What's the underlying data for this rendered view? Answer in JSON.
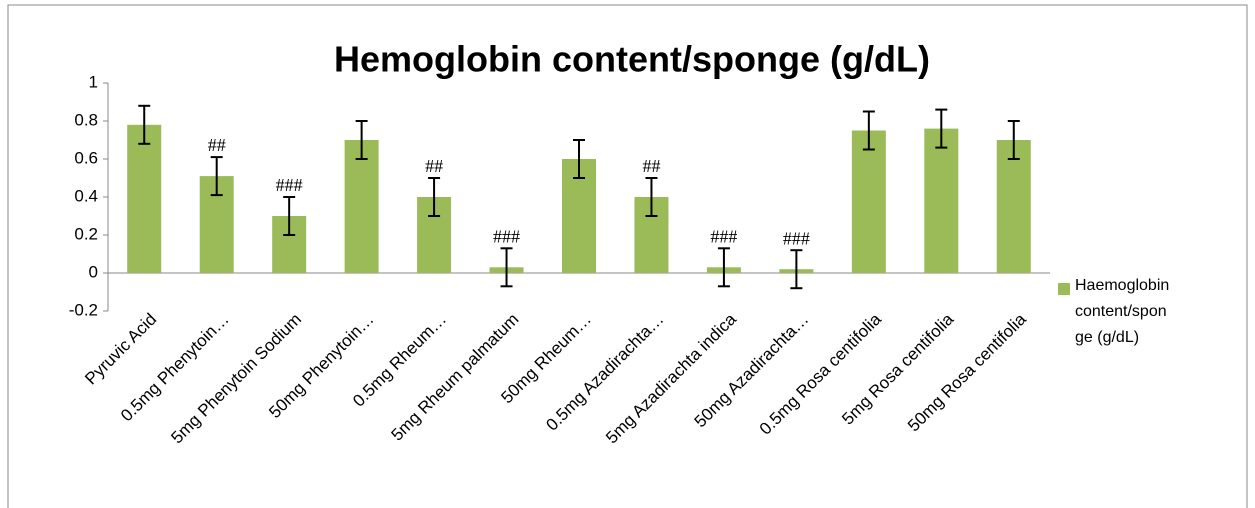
{
  "chart_data": {
    "type": "bar",
    "title": "Hemoglobin content/sponge (g/dL)",
    "categories": [
      "Pyruvic Acid",
      "0.5mg Phenytoin…",
      "5mg Phenytoin Sodium",
      "50mg Phenytoin…",
      "0.5mg Rheum…",
      "5mg Rheum palmatum",
      "50mg Rheum…",
      "0.5mg Azadirachta…",
      "5mg Azadirachta indica",
      "50mg Azadirachta…",
      "0.5mg Rosa centifolia",
      "5mg Rosa centifolia",
      "50mg Rosa centifolia"
    ],
    "series": [
      {
        "name": "Haemoglobin content/sponge (g/dL)",
        "color": "#9bbb59",
        "values": [
          0.78,
          0.51,
          0.3,
          0.7,
          0.4,
          0.03,
          0.6,
          0.4,
          0.03,
          0.02,
          0.75,
          0.76,
          0.7
        ],
        "errors": [
          0.1,
          0.1,
          0.1,
          0.1,
          0.1,
          0.1,
          0.1,
          0.1,
          0.1,
          0.1,
          0.1,
          0.1,
          0.1
        ]
      }
    ],
    "annotations": [
      null,
      "##",
      "###",
      null,
      "##",
      "###",
      null,
      "##",
      "###",
      "###",
      null,
      null,
      null
    ],
    "ylim": [
      -0.2,
      1
    ],
    "yticks": [
      -0.2,
      0,
      0.2,
      0.4,
      0.6,
      0.8,
      1
    ],
    "grid": false,
    "legend": "right"
  }
}
